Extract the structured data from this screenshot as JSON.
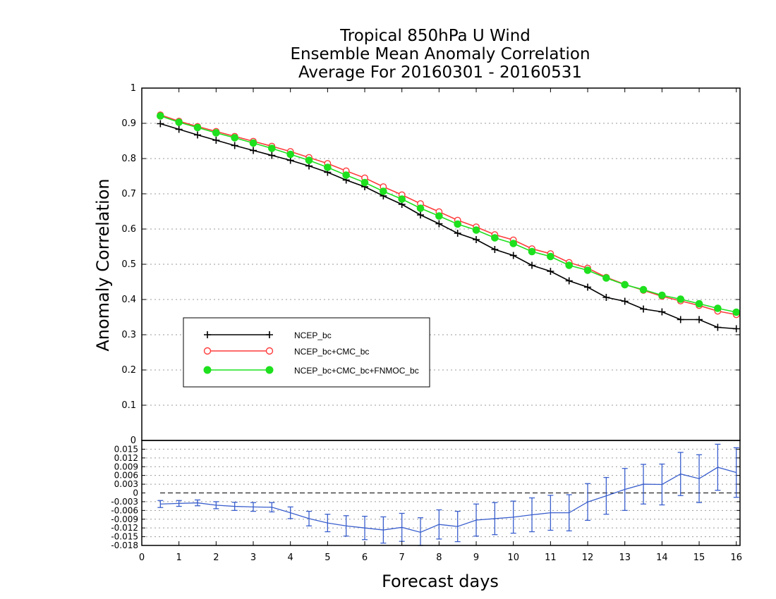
{
  "chart_data": [
    {
      "type": "line",
      "title": [
        "Tropical 850hPa U Wind",
        "Ensemble Mean Anomaly Correlation",
        "Average For 20160301 - 20160531"
      ],
      "xlabel": "Forecast days",
      "ylabel": "Anomaly Correlation",
      "xlim": [
        0,
        16.1
      ],
      "ylim": [
        0,
        1
      ],
      "yticks": [
        "0",
        "0.1",
        "0.2",
        "0.3",
        "0.4",
        "0.5",
        "0.6",
        "0.7",
        "0.8",
        "0.9",
        "1"
      ],
      "grid": true,
      "legend_position": "lower-left",
      "x": [
        0.5,
        1,
        1.5,
        2,
        2.5,
        3,
        3.5,
        4,
        4.5,
        5,
        5.5,
        6,
        6.5,
        7,
        7.5,
        8,
        8.5,
        9,
        9.5,
        10,
        10.5,
        11,
        11.5,
        12,
        12.5,
        13,
        13.5,
        14,
        14.5,
        15,
        15.5,
        16
      ],
      "series": [
        {
          "name": "NCEP_bc",
          "color": "#000000",
          "marker": "plus",
          "values": [
            0.899,
            0.883,
            0.867,
            0.852,
            0.837,
            0.823,
            0.809,
            0.795,
            0.779,
            0.761,
            0.739,
            0.72,
            0.694,
            0.67,
            0.64,
            0.615,
            0.588,
            0.57,
            0.542,
            0.525,
            0.497,
            0.48,
            0.453,
            0.435,
            0.406,
            0.395,
            0.373,
            0.365,
            0.343,
            0.343,
            0.321,
            0.317
          ]
        },
        {
          "name": "NCEP_bc+CMC_bc",
          "color": "#ff3b3b",
          "marker": "open-circle",
          "values": [
            0.924,
            0.906,
            0.891,
            0.877,
            0.863,
            0.849,
            0.835,
            0.82,
            0.803,
            0.786,
            0.765,
            0.745,
            0.72,
            0.697,
            0.672,
            0.649,
            0.625,
            0.606,
            0.584,
            0.569,
            0.544,
            0.53,
            0.505,
            0.489,
            0.463,
            0.443,
            0.426,
            0.409,
            0.396,
            0.383,
            0.367,
            0.357
          ]
        },
        {
          "name": "NCEP_bc+CMC_bc+FNMOC_bc",
          "color": "#1ee01e",
          "marker": "filled-circle",
          "values": [
            0.921,
            0.903,
            0.888,
            0.873,
            0.859,
            0.844,
            0.829,
            0.812,
            0.795,
            0.775,
            0.753,
            0.732,
            0.707,
            0.685,
            0.659,
            0.637,
            0.614,
            0.597,
            0.575,
            0.559,
            0.536,
            0.522,
            0.497,
            0.483,
            0.461,
            0.442,
            0.428,
            0.412,
            0.401,
            0.388,
            0.375,
            0.364
          ]
        }
      ]
    },
    {
      "type": "line",
      "xlabel": "Forecast days",
      "xlim": [
        0,
        16.1
      ],
      "ylim": [
        -0.018,
        0.018
      ],
      "xticks": [
        "0",
        "1",
        "2",
        "3",
        "4",
        "5",
        "6",
        "7",
        "8",
        "9",
        "10",
        "11",
        "12",
        "13",
        "14",
        "15",
        "16"
      ],
      "yticks": [
        "-0.018",
        "-0.015",
        "-0.012",
        "-0.009",
        "-0.006",
        "-0.003",
        "0",
        "0.003",
        "0.006",
        "0.009",
        "0.012",
        "0.015"
      ],
      "grid": true,
      "reference_line": 0,
      "x": [
        0.5,
        1,
        1.5,
        2,
        2.5,
        3,
        3.5,
        4,
        4.5,
        5,
        5.5,
        6,
        6.5,
        7,
        7.5,
        8,
        8.5,
        9,
        9.5,
        10,
        10.5,
        11,
        11.5,
        12,
        12.5,
        13,
        13.5,
        14,
        14.5,
        15,
        15.5,
        16
      ],
      "series": [
        {
          "color": "#3a5fcd",
          "marker": "error-bar",
          "values": [
            -0.0038,
            -0.0036,
            -0.0034,
            -0.0042,
            -0.0046,
            -0.0048,
            -0.0049,
            -0.0068,
            -0.0088,
            -0.0103,
            -0.0113,
            -0.012,
            -0.0127,
            -0.0118,
            -0.0135,
            -0.0108,
            -0.0115,
            -0.0093,
            -0.0088,
            -0.0083,
            -0.0075,
            -0.0068,
            -0.0068,
            -0.0031,
            -0.001,
            0.0012,
            0.003,
            0.0029,
            0.0065,
            0.0049,
            0.0088,
            0.007
          ],
          "error": [
            0.0012,
            0.001,
            0.001,
            0.0012,
            0.0014,
            0.0015,
            0.0016,
            0.002,
            0.0025,
            0.003,
            0.0035,
            0.004,
            0.0045,
            0.0048,
            0.005,
            0.005,
            0.0052,
            0.0055,
            0.0055,
            0.0055,
            0.0058,
            0.006,
            0.0062,
            0.0063,
            0.0063,
            0.0072,
            0.0068,
            0.007,
            0.0074,
            0.0082,
            0.0079,
            0.0085
          ]
        }
      ]
    }
  ]
}
